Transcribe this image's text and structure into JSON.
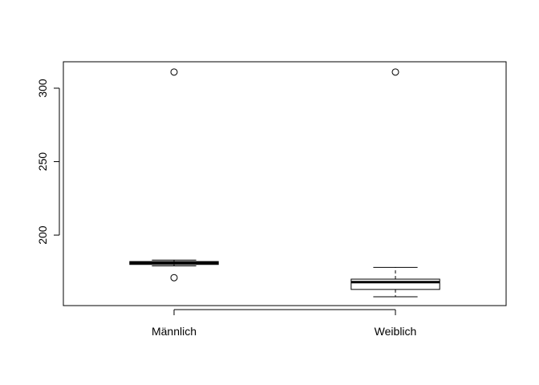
{
  "chart_data": {
    "type": "boxplot",
    "title": "",
    "xlabel": "",
    "ylabel": "",
    "ylim": [
      152,
      318
    ],
    "yticks": [
      200,
      250,
      300
    ],
    "ytick_labels": [
      "200",
      "250",
      "300"
    ],
    "categories": [
      "Männlich",
      "Weiblich"
    ],
    "boxes": [
      {
        "name": "Männlich",
        "whisker_low": 179,
        "q1": 180,
        "median": 181,
        "q3": 182,
        "whisker_high": 183,
        "outliers": [
          171,
          311
        ]
      },
      {
        "name": "Weiblich",
        "whisker_low": 158,
        "q1": 163,
        "median": 168,
        "q3": 170,
        "whisker_high": 178,
        "outliers": [
          311
        ]
      }
    ],
    "grid": false,
    "legend": "none",
    "colors": {
      "stroke": "#000000",
      "box_fill": "#ffffff",
      "background": "#ffffff"
    }
  }
}
